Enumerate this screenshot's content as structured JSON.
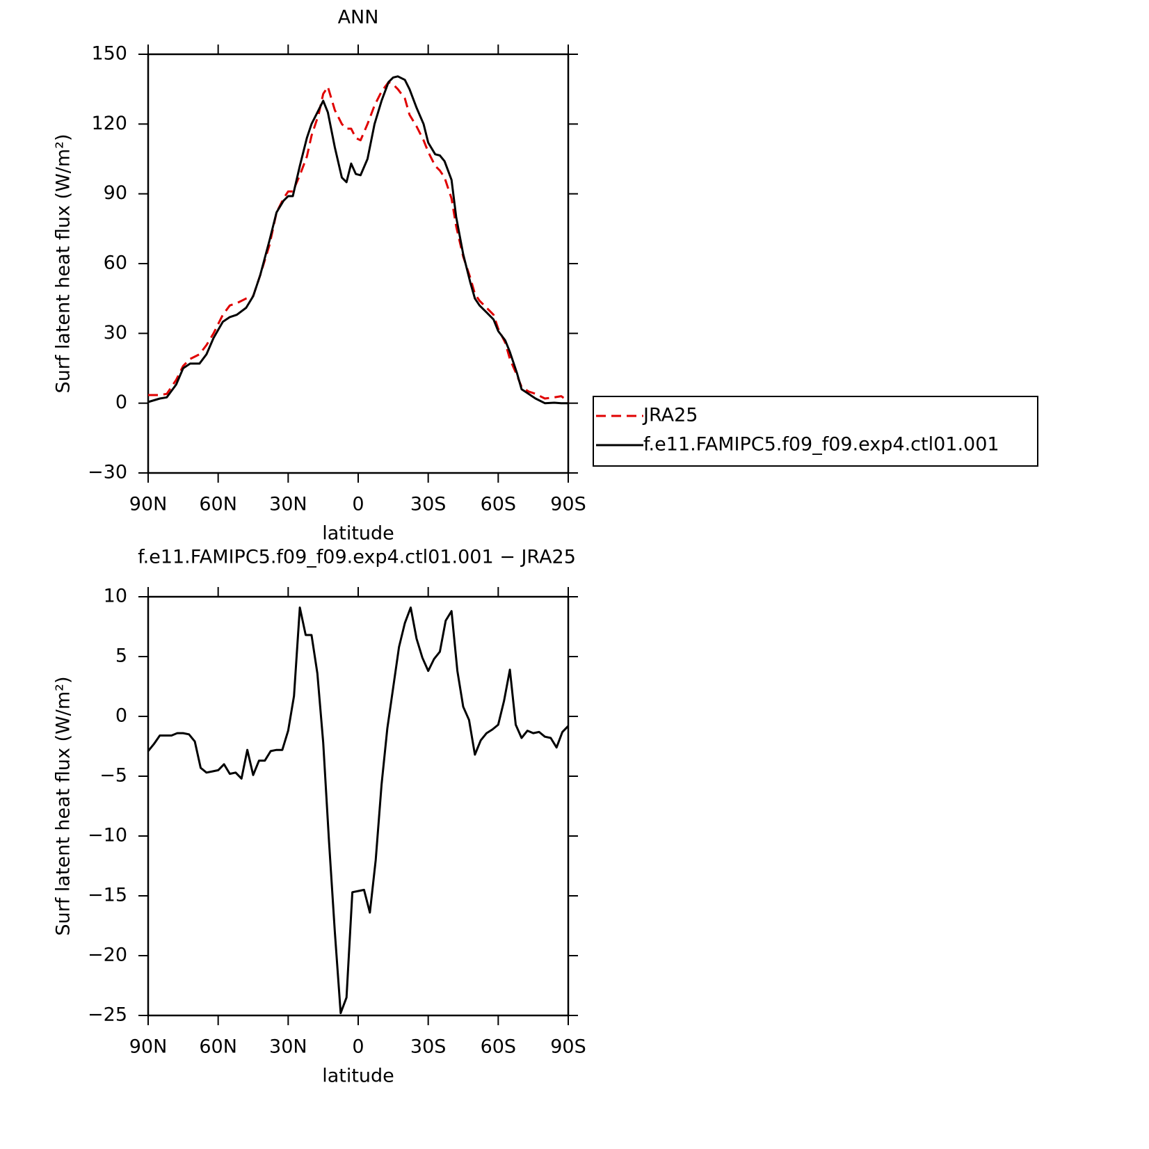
{
  "chart_data": [
    {
      "type": "line",
      "title": "ANN",
      "xlabel": "latitude",
      "ylabel": "Surf latent heat flux (W/m²)",
      "xlim": [
        90,
        -90
      ],
      "xticks": [
        {
          "value": 90,
          "label": "90N"
        },
        {
          "value": 60,
          "label": "60N"
        },
        {
          "value": 30,
          "label": "30N"
        },
        0,
        {
          "value": -30,
          "label": "30S"
        },
        {
          "value": -60,
          "label": "60S"
        },
        {
          "value": -90,
          "label": "90S"
        }
      ],
      "ylim": [
        -30,
        150
      ],
      "yticks": [
        {
          "value": -30,
          "label": "−30"
        },
        0,
        30,
        60,
        90,
        120,
        150
      ],
      "x": [
        90,
        85,
        82,
        78,
        75,
        72,
        68,
        65,
        62,
        58,
        55,
        52,
        48,
        45,
        42,
        38,
        35,
        32,
        30,
        28,
        25,
        22,
        20,
        17,
        15,
        13,
        10,
        7,
        5,
        3,
        1,
        -1,
        -4,
        -7,
        -10,
        -13,
        -15,
        -17,
        -20,
        -22,
        -25,
        -28,
        -30,
        -33,
        -35,
        -37,
        -40,
        -42,
        -45,
        -48,
        -50,
        -52,
        -55,
        -58,
        -60,
        -63,
        -65,
        -68,
        -70,
        -73,
        -76,
        -80,
        -84,
        -87,
        -90
      ],
      "series": [
        {
          "name": "JRA25",
          "color": "#e00000",
          "dashed": true,
          "values": [
            3.5,
            3.5,
            4,
            10,
            16,
            19,
            21,
            25,
            30,
            38,
            42,
            43,
            45,
            46,
            55,
            68,
            82,
            88,
            91,
            91,
            98,
            106,
            115,
            124,
            133,
            136,
            126,
            120,
            118,
            118,
            114,
            113,
            120,
            128,
            134,
            138,
            137,
            135,
            131,
            124,
            119,
            113,
            108,
            102,
            100,
            97,
            88,
            76,
            63,
            54,
            47,
            44,
            41,
            38,
            32,
            26,
            19,
            12,
            7,
            5,
            4,
            2,
            2.5,
            3,
            0.8
          ]
        },
        {
          "name": "f.e11.FAMIPC5.f09_f09.exp4.ctl01.001",
          "color": "#000000",
          "dashed": false,
          "values": [
            0.5,
            2,
            2.5,
            8,
            15,
            17,
            17,
            21,
            28,
            35,
            37,
            38,
            41,
            46,
            55,
            70,
            82,
            87,
            89,
            89,
            102,
            114,
            120,
            126,
            130,
            125,
            110,
            97,
            95,
            103,
            98.5,
            98,
            105,
            120,
            130,
            138,
            140,
            140.5,
            139,
            135,
            127,
            120,
            112,
            107,
            106.5,
            104,
            96,
            80,
            64,
            52,
            45,
            42,
            39,
            36,
            31,
            27,
            22,
            13,
            6,
            4,
            2,
            0,
            0.2,
            0,
            0
          ]
        }
      ],
      "legend": "right"
    },
    {
      "type": "line",
      "title": "f.e11.FAMIPC5.f09_f09.exp4.ctl01.001 − JRA25",
      "xlabel": "latitude",
      "ylabel": "Surf latent heat flux (W/m²)",
      "xlim": [
        90,
        -90
      ],
      "xticks": [
        {
          "value": 90,
          "label": "90N"
        },
        {
          "value": 60,
          "label": "60N"
        },
        {
          "value": 30,
          "label": "30N"
        },
        0,
        {
          "value": -30,
          "label": "30S"
        },
        {
          "value": -60,
          "label": "60S"
        },
        {
          "value": -90,
          "label": "90S"
        }
      ],
      "ylim": [
        -25,
        10
      ],
      "yticks": [
        {
          "value": -25,
          "label": "−25"
        },
        {
          "value": -20,
          "label": "−20"
        },
        {
          "value": -15,
          "label": "−15"
        },
        {
          "value": -10,
          "label": "−10"
        },
        {
          "value": -5,
          "label": "−5"
        },
        0,
        5,
        10
      ],
      "x": [
        90,
        87.5,
        85,
        82.5,
        80,
        77.5,
        75,
        72.5,
        70,
        67.5,
        65,
        62.5,
        60,
        57.5,
        55,
        52.5,
        50,
        47.5,
        45,
        42.5,
        40,
        37.5,
        35,
        32.5,
        30,
        27.5,
        25,
        22.5,
        20,
        17.5,
        15,
        12.5,
        10,
        7.5,
        5,
        2.5,
        0,
        -2.5,
        -5,
        -7.5,
        -10,
        -12.5,
        -15,
        -17.5,
        -20,
        -22.5,
        -25,
        -27.5,
        -30,
        -32.5,
        -35,
        -37.5,
        -40,
        -42.5,
        -45,
        -47.5,
        -50,
        -52.5,
        -55,
        -57.5,
        -60,
        -62.5,
        -65,
        -67.5,
        -70,
        -72.5,
        -75,
        -77.5,
        -80,
        -82.5,
        -85,
        -87.5,
        -90
      ],
      "series": [
        {
          "color": "#000000",
          "dashed": false,
          "values": [
            -2.9,
            -2.3,
            -1.6,
            -1.6,
            -1.6,
            -1.4,
            -1.4,
            -1.5,
            -2.1,
            -4.3,
            -4.7,
            -4.6,
            -4.5,
            -4.0,
            -4.8,
            -4.7,
            -5.2,
            -2.8,
            -4.9,
            -3.7,
            -3.7,
            -2.9,
            -2.8,
            -2.8,
            -1.2,
            1.7,
            9.1,
            6.8,
            6.8,
            3.6,
            -2.2,
            -10.5,
            -18,
            -24.8,
            -23.5,
            -14.7,
            -14.6,
            -14.5,
            -16.4,
            -12,
            -5.7,
            -1,
            2.4,
            5.8,
            7.8,
            9.1,
            6.5,
            4.9,
            3.8,
            4.8,
            5.4,
            8.0,
            8.8,
            3.8,
            0.8,
            -0.3,
            -3.2,
            -2,
            -1.4,
            -1.1,
            -0.7,
            1.3,
            3.9,
            -0.7,
            -1.8,
            -1.2,
            -1.4,
            -1.3,
            -1.7,
            -1.8,
            -2.6,
            -1.3,
            -0.8
          ]
        }
      ]
    }
  ]
}
